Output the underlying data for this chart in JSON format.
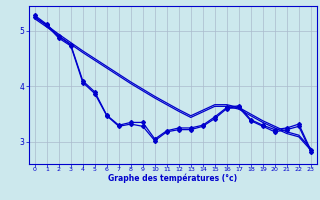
{
  "xlabel": "Graphe des températures (°c)",
  "background_color": "#cce8ed",
  "line_color": "#0000cc",
  "grid_color": "#aabbcc",
  "xlim": [
    -0.5,
    23.5
  ],
  "ylim": [
    2.6,
    5.45
  ],
  "yticks": [
    3,
    4,
    5
  ],
  "xticks": [
    0,
    1,
    2,
    3,
    4,
    5,
    6,
    7,
    8,
    9,
    10,
    11,
    12,
    13,
    14,
    15,
    16,
    17,
    18,
    19,
    20,
    21,
    22,
    23
  ],
  "series1_jagged": [
    5.28,
    5.12,
    4.9,
    4.75,
    4.1,
    3.9,
    3.48,
    3.3,
    3.35,
    3.35,
    3.05,
    3.2,
    3.25,
    3.25,
    3.3,
    3.45,
    3.62,
    3.65,
    3.4,
    3.3,
    3.22,
    3.25,
    3.32,
    2.85
  ],
  "series2_jagged": [
    5.25,
    5.1,
    4.87,
    4.73,
    4.07,
    3.87,
    3.47,
    3.28,
    3.32,
    3.28,
    3.02,
    3.18,
    3.22,
    3.22,
    3.28,
    3.42,
    3.6,
    3.62,
    3.38,
    3.28,
    3.18,
    3.22,
    3.28,
    2.82
  ],
  "series3_smooth": [
    5.25,
    5.1,
    4.94,
    4.79,
    4.64,
    4.5,
    4.36,
    4.22,
    4.08,
    3.95,
    3.82,
    3.7,
    3.58,
    3.47,
    3.57,
    3.67,
    3.67,
    3.62,
    3.5,
    3.38,
    3.28,
    3.18,
    3.12,
    2.88
  ],
  "series4_smooth": [
    5.22,
    5.07,
    4.91,
    4.76,
    4.61,
    4.47,
    4.33,
    4.19,
    4.05,
    3.92,
    3.79,
    3.67,
    3.55,
    3.44,
    3.54,
    3.64,
    3.64,
    3.59,
    3.47,
    3.35,
    3.25,
    3.15,
    3.09,
    2.85
  ]
}
